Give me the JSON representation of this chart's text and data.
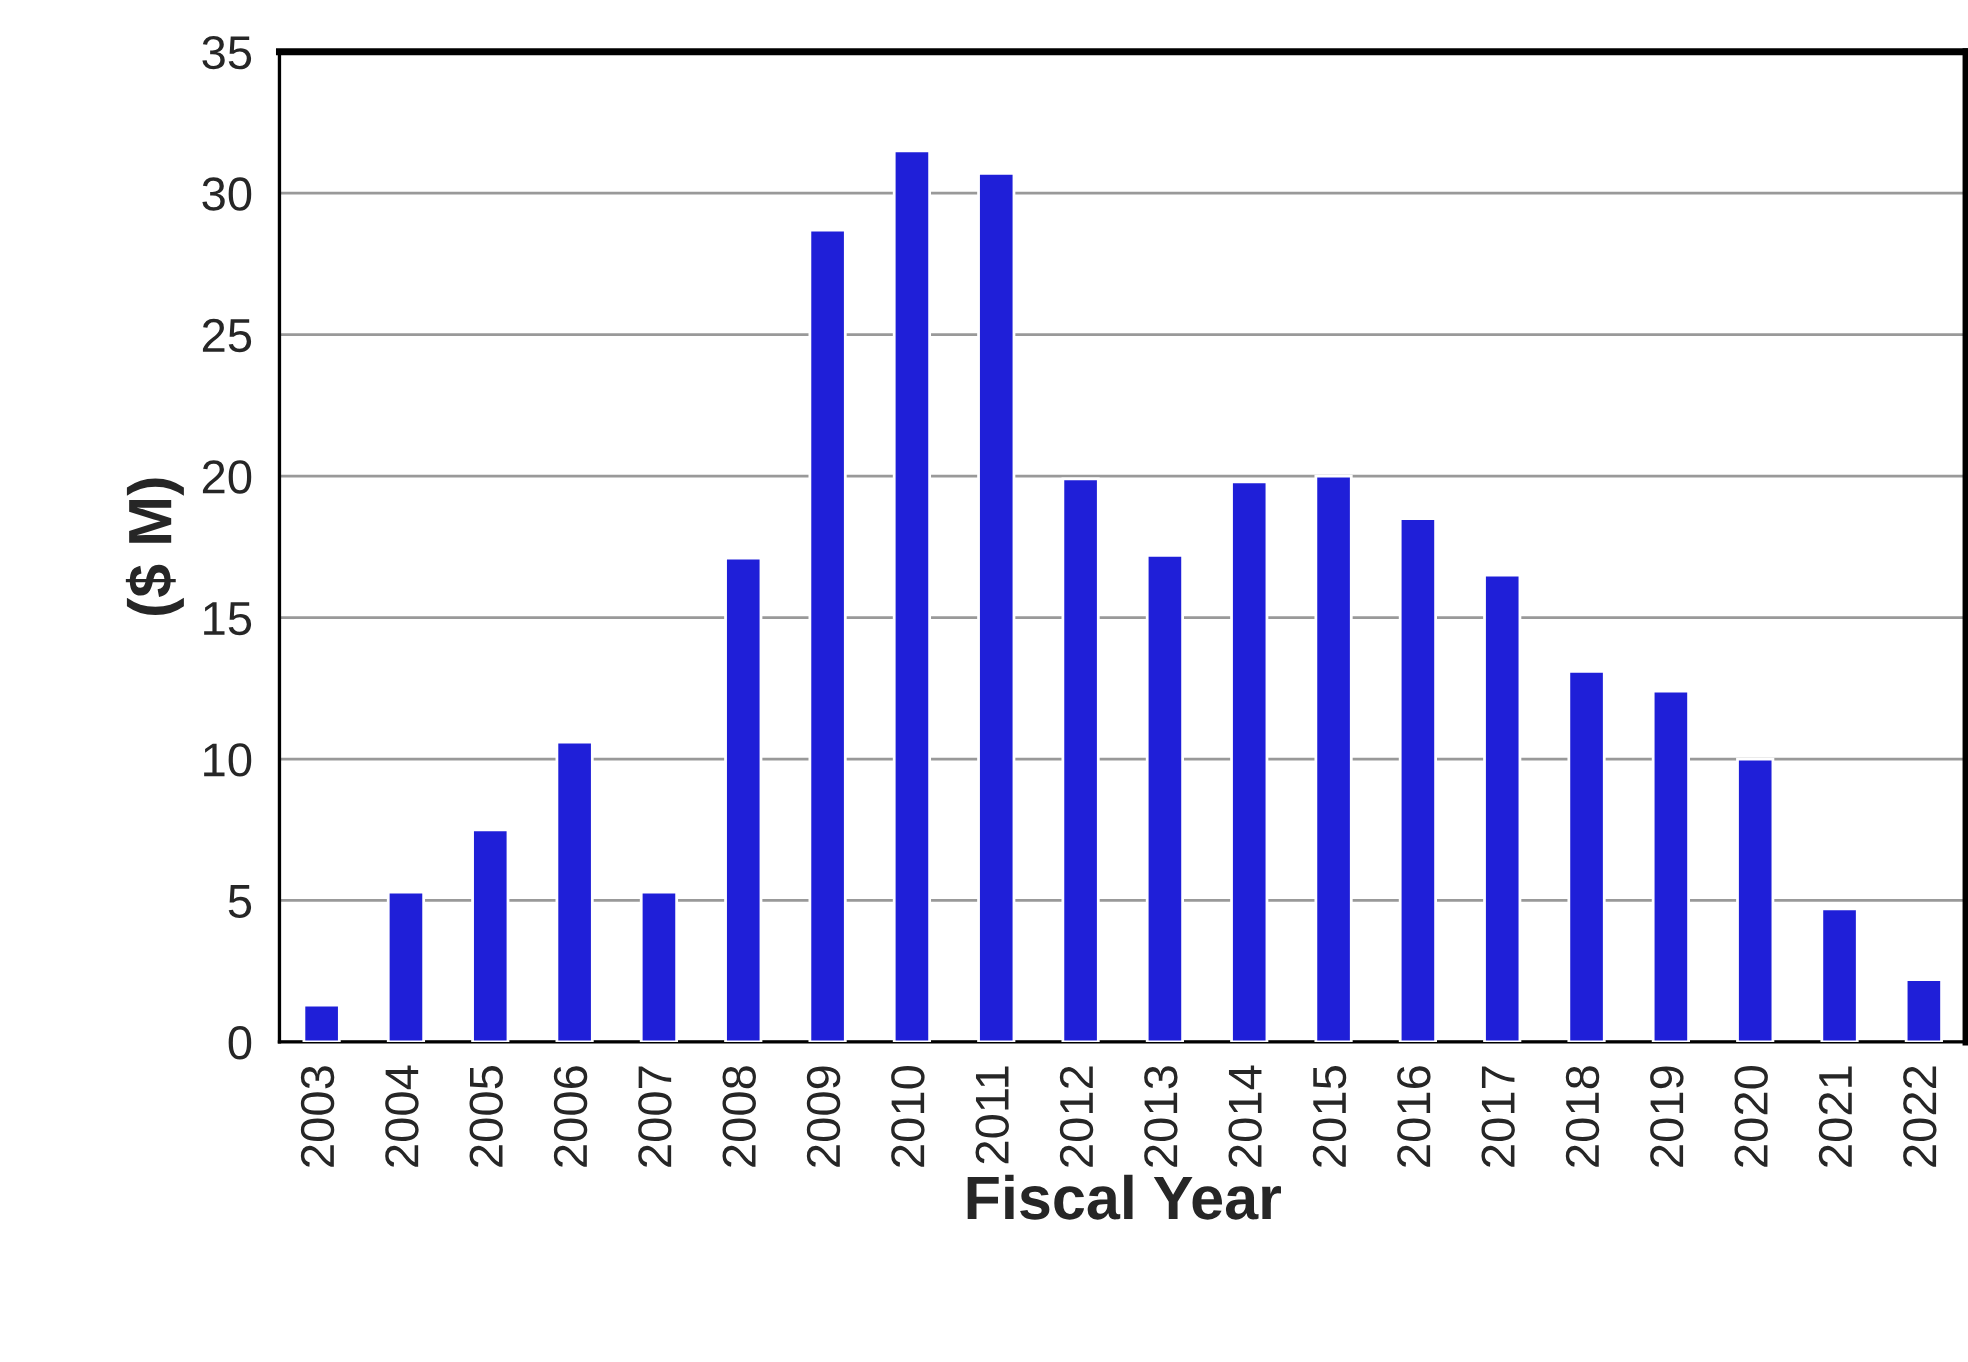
{
  "chart_data": {
    "type": "bar",
    "xlabel": "Fiscal Year",
    "ylabel": "($ M)",
    "categories": [
      "2003",
      "2004",
      "2005",
      "2006",
      "2007",
      "2008",
      "2009",
      "2010",
      "2011",
      "2012",
      "2013",
      "2014",
      "2015",
      "2016",
      "2017",
      "2018",
      "2019",
      "2020",
      "2021",
      "2022"
    ],
    "values": [
      1.3,
      5.3,
      7.5,
      10.6,
      5.3,
      17.1,
      28.7,
      31.5,
      30.7,
      19.9,
      17.2,
      19.8,
      20.0,
      18.5,
      16.5,
      13.1,
      12.4,
      10.0,
      4.7,
      2.2
    ],
    "color": "#1f1fd8",
    "ylim": [
      0,
      35
    ],
    "yticks": [
      0,
      5,
      10,
      15,
      20,
      25,
      30,
      35
    ],
    "grid": "y"
  }
}
